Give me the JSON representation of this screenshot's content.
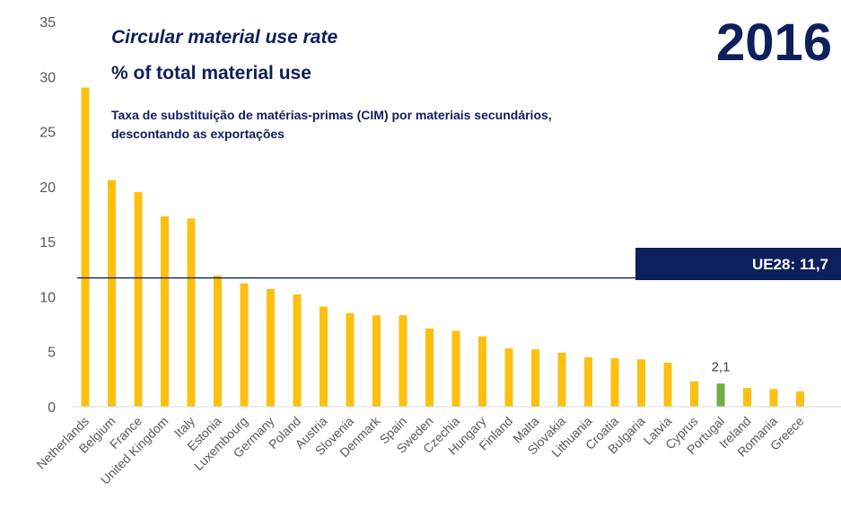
{
  "header": {
    "title": "Circular material use rate",
    "unit_title": "% of total material use",
    "subtitle_line1": "Taxa de substituição de matérias-primas (CIM) por materiais secundários,",
    "subtitle_line2": "descontando as exportações",
    "year": "2016"
  },
  "reference": {
    "label": "UE28: 11,7",
    "value": 11.7,
    "color": "#0d1f5c"
  },
  "chart_data": {
    "type": "bar",
    "title": "Circular material use rate",
    "ylabel": "",
    "xlabel": "",
    "ylim": [
      0,
      35
    ],
    "yticks": [
      0,
      5,
      10,
      15,
      20,
      25,
      30,
      35
    ],
    "grid": false,
    "categories": [
      "Netherlands",
      "Belgium",
      "France",
      "United Kingdom",
      "Italy",
      "Estonia",
      "Luxembourg",
      "Germany",
      "Poland",
      "Austria",
      "Slovenia",
      "Denmark",
      "Spain",
      "Sweden",
      "Czechia",
      "Hungary",
      "Finland",
      "Malta",
      "Slovakia",
      "Lithuania",
      "Croatia",
      "Bulgaria",
      "Latvia",
      "Cyprus",
      "Portugal",
      "Ireland",
      "Romania",
      "Greece"
    ],
    "values": [
      29.0,
      20.6,
      19.5,
      17.3,
      17.1,
      11.9,
      11.2,
      10.7,
      10.2,
      9.1,
      8.5,
      8.3,
      8.3,
      7.1,
      6.9,
      6.4,
      5.3,
      5.2,
      4.9,
      4.5,
      4.4,
      4.3,
      4.0,
      2.3,
      2.1,
      1.7,
      1.6,
      1.4
    ],
    "bar_color": "#fdc010",
    "highlight": {
      "category": "Portugal",
      "color": "#70ad47",
      "label": "2,1"
    }
  }
}
